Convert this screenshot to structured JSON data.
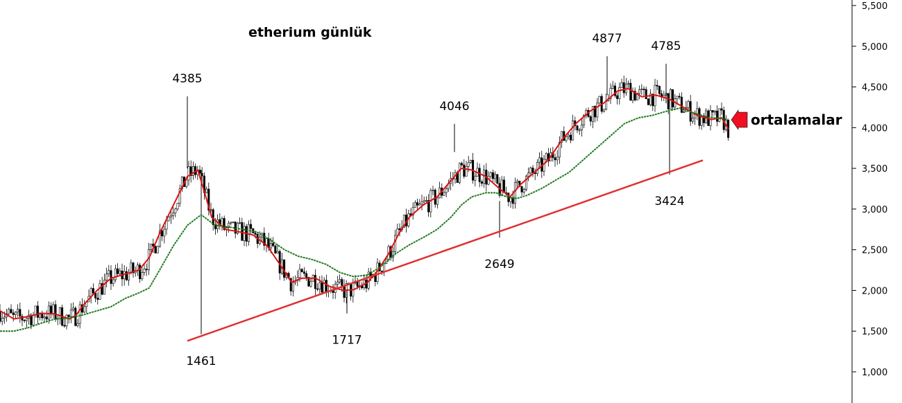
{
  "chart_data": {
    "type": "line",
    "title": "etherium günlük",
    "y_ticks": [
      "5,500",
      "5,000",
      "4,500",
      "4,000",
      "3,500",
      "3,000",
      "2,500",
      "2,000",
      "1,500",
      "1,000"
    ],
    "ylim": [
      700,
      5650
    ],
    "y_axis_position": "right",
    "grid": false,
    "price_series_style": "candlestick (black)",
    "series": [
      {
        "name": "",
        "kind": "moving-average",
        "color": "#dd1111",
        "points": [
          [
            0,
            1750
          ],
          [
            20,
            1650
          ],
          [
            40,
            1680
          ],
          [
            60,
            1720
          ],
          [
            80,
            1710
          ],
          [
            100,
            1650
          ],
          [
            110,
            1700
          ],
          [
            120,
            1820
          ],
          [
            140,
            2000
          ],
          [
            160,
            2150
          ],
          [
            180,
            2200
          ],
          [
            200,
            2250
          ],
          [
            215,
            2400
          ],
          [
            230,
            2700
          ],
          [
            250,
            3050
          ],
          [
            270,
            3400
          ],
          [
            285,
            3480
          ],
          [
            295,
            3200
          ],
          [
            305,
            2900
          ],
          [
            325,
            2750
          ],
          [
            345,
            2720
          ],
          [
            365,
            2680
          ],
          [
            385,
            2550
          ],
          [
            405,
            2300
          ],
          [
            420,
            2100
          ],
          [
            435,
            2150
          ],
          [
            455,
            2150
          ],
          [
            475,
            2050
          ],
          [
            495,
            2000
          ],
          [
            510,
            2010
          ],
          [
            530,
            2100
          ],
          [
            545,
            2250
          ],
          [
            560,
            2450
          ],
          [
            575,
            2700
          ],
          [
            590,
            2900
          ],
          [
            610,
            3050
          ],
          [
            630,
            3150
          ],
          [
            650,
            3350
          ],
          [
            665,
            3500
          ],
          [
            680,
            3480
          ],
          [
            700,
            3400
          ],
          [
            720,
            3250
          ],
          [
            735,
            3150
          ],
          [
            750,
            3300
          ],
          [
            770,
            3450
          ],
          [
            790,
            3600
          ],
          [
            810,
            3850
          ],
          [
            830,
            4050
          ],
          [
            850,
            4200
          ],
          [
            870,
            4300
          ],
          [
            890,
            4450
          ],
          [
            905,
            4480
          ],
          [
            925,
            4380
          ],
          [
            945,
            4400
          ],
          [
            965,
            4350
          ],
          [
            985,
            4250
          ],
          [
            1005,
            4150
          ],
          [
            1025,
            4100
          ],
          [
            1040,
            4120
          ],
          [
            1050,
            3980
          ]
        ]
      },
      {
        "name": "",
        "kind": "moving-average",
        "color": "#1e7a1e",
        "points": [
          [
            0,
            1500
          ],
          [
            20,
            1500
          ],
          [
            40,
            1540
          ],
          [
            60,
            1600
          ],
          [
            80,
            1650
          ],
          [
            100,
            1660
          ],
          [
            120,
            1700
          ],
          [
            140,
            1750
          ],
          [
            160,
            1800
          ],
          [
            180,
            1900
          ],
          [
            200,
            1970
          ],
          [
            215,
            2030
          ],
          [
            230,
            2250
          ],
          [
            250,
            2550
          ],
          [
            270,
            2800
          ],
          [
            290,
            2930
          ],
          [
            310,
            2800
          ],
          [
            330,
            2780
          ],
          [
            350,
            2750
          ],
          [
            370,
            2720
          ],
          [
            390,
            2620
          ],
          [
            410,
            2500
          ],
          [
            430,
            2420
          ],
          [
            450,
            2380
          ],
          [
            470,
            2320
          ],
          [
            490,
            2220
          ],
          [
            510,
            2170
          ],
          [
            530,
            2190
          ],
          [
            550,
            2300
          ],
          [
            570,
            2450
          ],
          [
            590,
            2560
          ],
          [
            610,
            2650
          ],
          [
            630,
            2750
          ],
          [
            650,
            2900
          ],
          [
            665,
            3050
          ],
          [
            680,
            3150
          ],
          [
            700,
            3200
          ],
          [
            715,
            3200
          ],
          [
            730,
            3150
          ],
          [
            745,
            3130
          ],
          [
            760,
            3170
          ],
          [
            780,
            3250
          ],
          [
            800,
            3350
          ],
          [
            820,
            3450
          ],
          [
            840,
            3600
          ],
          [
            860,
            3750
          ],
          [
            880,
            3900
          ],
          [
            900,
            4050
          ],
          [
            920,
            4120
          ],
          [
            940,
            4150
          ],
          [
            960,
            4200
          ],
          [
            980,
            4240
          ],
          [
            1000,
            4180
          ],
          [
            1020,
            4130
          ],
          [
            1040,
            4110
          ],
          [
            1050,
            4100
          ]
        ]
      },
      {
        "name": "",
        "kind": "trendline",
        "color": "#e03030",
        "points": [
          [
            270,
            1380
          ],
          [
            1013,
            3600
          ]
        ]
      }
    ],
    "annotations": [
      {
        "text": "4385",
        "x": 270,
        "y": 4385,
        "position": "above"
      },
      {
        "text": "1461",
        "x": 290,
        "y": 1461,
        "position": "below"
      },
      {
        "text": "1717",
        "x": 500,
        "y": 1717,
        "position": "below"
      },
      {
        "text": "4046",
        "x": 655,
        "y": 4046,
        "position": "above"
      },
      {
        "text": "2649",
        "x": 720,
        "y": 2649,
        "position": "below"
      },
      {
        "text": "4877",
        "x": 875,
        "y": 4877,
        "position": "above"
      },
      {
        "text": "4785",
        "x": 960,
        "y": 4785,
        "position": "above"
      },
      {
        "text": "3424",
        "x": 965,
        "y": 3424,
        "position": "below"
      }
    ],
    "callout": {
      "text": "ortalamalar",
      "arrow_color": "#ee1122"
    }
  }
}
